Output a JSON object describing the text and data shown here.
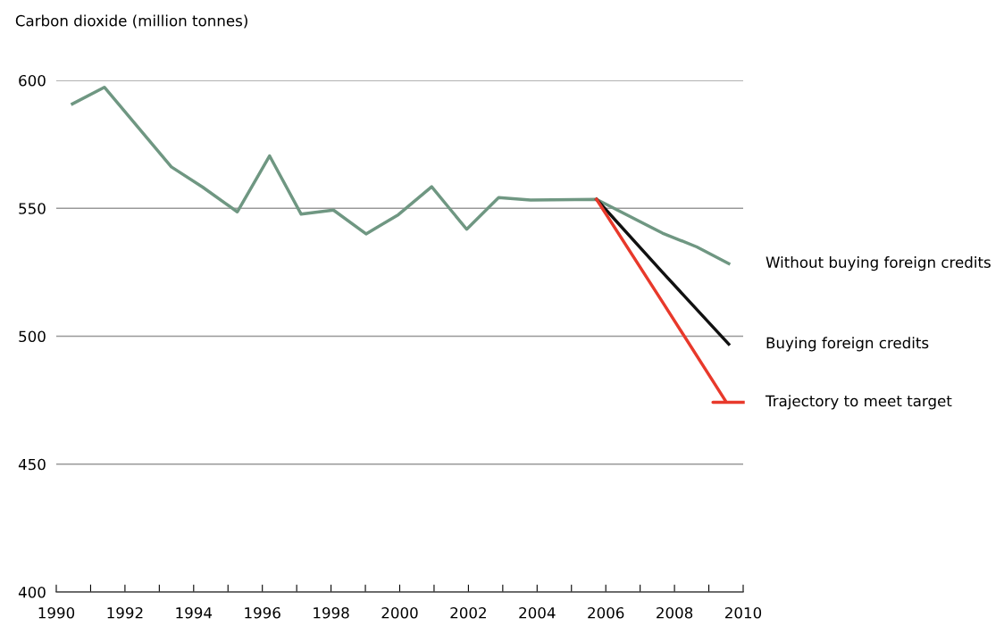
{
  "chart_data": {
    "type": "line",
    "ylabel": "Carbon dioxide (million tonnes)",
    "x": [
      1990.47,
      1991.4,
      1993.35,
      1994.26,
      1995.27,
      1996.21,
      1997.13,
      1998.07,
      1999.02,
      1999.96,
      2000.93,
      2001.95,
      2002.88,
      2003.81,
      2005.73,
      2007.65,
      2008.65,
      2009.58
    ],
    "series": [
      {
        "name": "Without buying foreign credits",
        "color": "#6f9782",
        "values": [
          590.8,
          597.3,
          566.2,
          558.3,
          548.6,
          570.5,
          547.7,
          549.3,
          540,
          547.5,
          558.4,
          541.8,
          554.2,
          553.2,
          553.5,
          540.3,
          534.9,
          528.4
        ]
      },
      {
        "name": "Buying foreign credits",
        "color": "#111111",
        "x": [
          2005.73,
          2007.65,
          2009.58
        ],
        "values": [
          553.5,
          525,
          496.9
        ]
      },
      {
        "name": "Trajectory to meet target",
        "color": "#e8392b",
        "x": [
          2005.73,
          2007.65,
          2009.51,
          2009.12,
          2010.0
        ],
        "values": [
          553.5,
          513.4,
          474.2,
          474.2,
          474.2
        ]
      }
    ],
    "xlim": [
      1990,
      2010
    ],
    "xticks": [
      1990,
      {
        "value": 1991,
        "label": null
      },
      1992,
      {
        "value": 1993,
        "label": null
      },
      1994,
      {
        "value": 1995,
        "label": null
      },
      1996,
      {
        "value": 1997,
        "label": null
      },
      1998,
      {
        "value": 1999,
        "label": null
      },
      2000,
      {
        "value": 2001,
        "label": null
      },
      2002,
      {
        "value": 2003,
        "label": null
      },
      2004,
      {
        "value": 2005,
        "label": null
      },
      2006,
      {
        "value": 2007,
        "label": null
      },
      2008,
      {
        "value": 2009,
        "label": null
      },
      2010
    ],
    "ylim": [
      400,
      600
    ],
    "yticks": [
      400,
      450,
      500,
      550,
      600
    ],
    "grid": "y",
    "legend": false
  }
}
